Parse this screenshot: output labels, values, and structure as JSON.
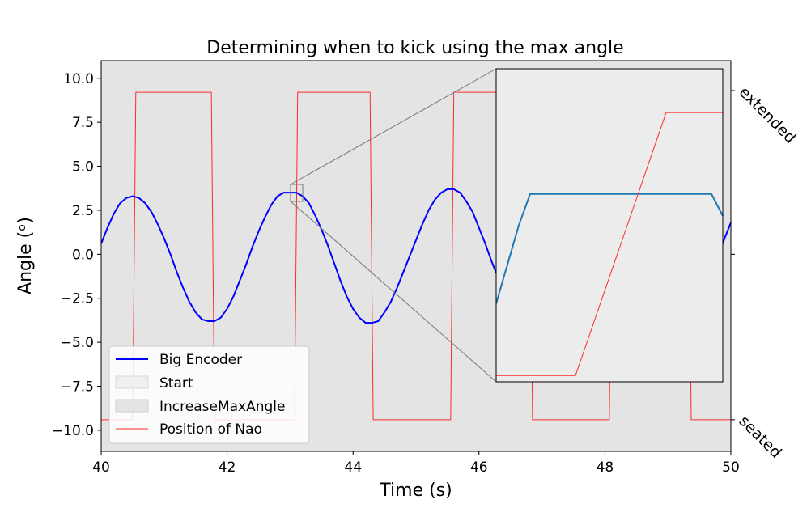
{
  "chart_data": {
    "type": "line",
    "title": "Determining when to kick using the max angle",
    "xlabel": "Time (s)",
    "ylabel": "Angle (ᵒ)",
    "xlim": [
      40,
      50
    ],
    "ylim": [
      -11.2,
      11.0
    ],
    "x_ticks": [
      40,
      42,
      44,
      46,
      48,
      50
    ],
    "x_tick_labels": [
      "40",
      "42",
      "44",
      "46",
      "48",
      "50"
    ],
    "y_ticks": [
      10.0,
      7.5,
      5.0,
      2.5,
      0.0,
      -2.5,
      -5.0,
      -7.5,
      -10.0
    ],
    "y_tick_labels": [
      "10.0",
      "7.5",
      "5.0",
      "2.5",
      "0.0",
      "−2.5",
      "−5.0",
      "−7.5",
      "−10.0"
    ],
    "right_axis": {
      "tick_labels": [
        "extended",
        "seated"
      ],
      "tick_values": [
        9.3,
        -9.4
      ]
    },
    "background_color": "#e4e4e4",
    "legend_position": "lower-left",
    "legend": [
      {
        "label": "Big Encoder",
        "kind": "line",
        "color": "#0000ff"
      },
      {
        "label": "Start",
        "kind": "patch",
        "color": "#f0f0f0"
      },
      {
        "label": "IncreaseMaxAngle",
        "kind": "patch",
        "color": "#e4e4e4"
      },
      {
        "label": "Position of Nao",
        "kind": "line",
        "color": "#ff2a2a"
      }
    ],
    "series": [
      {
        "name": "Big Encoder",
        "color": "#0000ff",
        "x": [
          40.0,
          40.1,
          40.2,
          40.3,
          40.4,
          40.5,
          40.6,
          40.7,
          40.8,
          40.9,
          41.0,
          41.1,
          41.2,
          41.3,
          41.4,
          41.5,
          41.6,
          41.7,
          41.8,
          41.9,
          42.0,
          42.1,
          42.2,
          42.3,
          42.4,
          42.5,
          42.6,
          42.7,
          42.8,
          42.9,
          43.0,
          43.1,
          43.2,
          43.3,
          43.4,
          43.5,
          43.6,
          43.7,
          43.8,
          43.9,
          44.0,
          44.1,
          44.2,
          44.3,
          44.4,
          44.5,
          44.6,
          44.7,
          44.8,
          44.9,
          45.0,
          45.1,
          45.2,
          45.3,
          45.4,
          45.5,
          45.6,
          45.7,
          45.8,
          45.9,
          46.0,
          46.1,
          46.2,
          46.3,
          46.4,
          46.5,
          46.6,
          46.7,
          46.8,
          46.9,
          47.0,
          47.1,
          47.2,
          47.3,
          47.4,
          47.5,
          47.6,
          47.7,
          47.8,
          47.9,
          48.0,
          48.1,
          48.2,
          48.3,
          48.4,
          48.5,
          48.6,
          48.7,
          48.8,
          48.9,
          49.0,
          49.1,
          49.2,
          49.3,
          49.4,
          49.5,
          49.6,
          49.7,
          49.8,
          49.9,
          50.0
        ],
        "y": [
          0.6,
          1.5,
          2.3,
          2.9,
          3.2,
          3.3,
          3.2,
          2.9,
          2.4,
          1.7,
          0.9,
          0.0,
          -1.0,
          -1.9,
          -2.7,
          -3.3,
          -3.7,
          -3.8,
          -3.8,
          -3.6,
          -3.1,
          -2.4,
          -1.5,
          -0.6,
          0.4,
          1.3,
          2.1,
          2.8,
          3.3,
          3.5,
          3.5,
          3.5,
          3.3,
          2.9,
          2.2,
          1.4,
          0.5,
          -0.5,
          -1.5,
          -2.4,
          -3.1,
          -3.6,
          -3.9,
          -3.9,
          -3.8,
          -3.3,
          -2.7,
          -1.9,
          -1.0,
          -0.1,
          0.8,
          1.7,
          2.5,
          3.1,
          3.5,
          3.7,
          3.7,
          3.5,
          3.0,
          2.4,
          1.5,
          0.6,
          -0.4,
          -1.3,
          -2.2,
          -3.0,
          -3.5,
          -3.8,
          -3.8,
          -3.7,
          -3.3,
          -2.7,
          -1.9,
          -1.0,
          0.0,
          1.0,
          1.9,
          2.6,
          3.2,
          3.5,
          3.6,
          3.5,
          3.1,
          2.5,
          1.7,
          0.8,
          -0.1,
          -1.1,
          -2.0,
          -2.8,
          -3.3,
          -3.7,
          -3.8,
          -3.7,
          -3.3,
          -2.7,
          -1.9,
          -1.0,
          -0.1,
          0.9,
          1.8
        ]
      },
      {
        "name": "Position of Nao",
        "color": "#ff2a2a",
        "x": [
          40.0,
          40.5,
          40.55,
          41.75,
          41.8,
          43.07,
          43.12,
          44.27,
          44.32,
          45.55,
          45.6,
          46.8,
          46.85,
          48.07,
          48.12,
          49.32,
          49.37,
          50.0
        ],
        "y": [
          -9.4,
          -9.4,
          9.2,
          9.2,
          -9.4,
          -9.4,
          9.2,
          9.2,
          -9.4,
          -9.4,
          9.2,
          9.2,
          -9.4,
          -9.4,
          9.2,
          9.2,
          -9.4,
          -9.4
        ]
      }
    ],
    "inset": {
      "xlim": [
        43.0,
        43.2
      ],
      "ylim": [
        2.95,
        3.95
      ],
      "background_color": "#ececec",
      "series": [
        {
          "name": "Big Encoder",
          "color": "#1f77b4",
          "x": [
            43.0,
            43.02,
            43.03,
            43.19,
            43.2
          ],
          "y": [
            3.2,
            3.45,
            3.55,
            3.55,
            3.48
          ]
        },
        {
          "name": "Position of Nao",
          "color": "#ff2a2a",
          "x": [
            43.0,
            43.07,
            43.15,
            43.2
          ],
          "y": [
            2.97,
            2.97,
            3.81,
            3.81
          ]
        }
      ]
    }
  }
}
